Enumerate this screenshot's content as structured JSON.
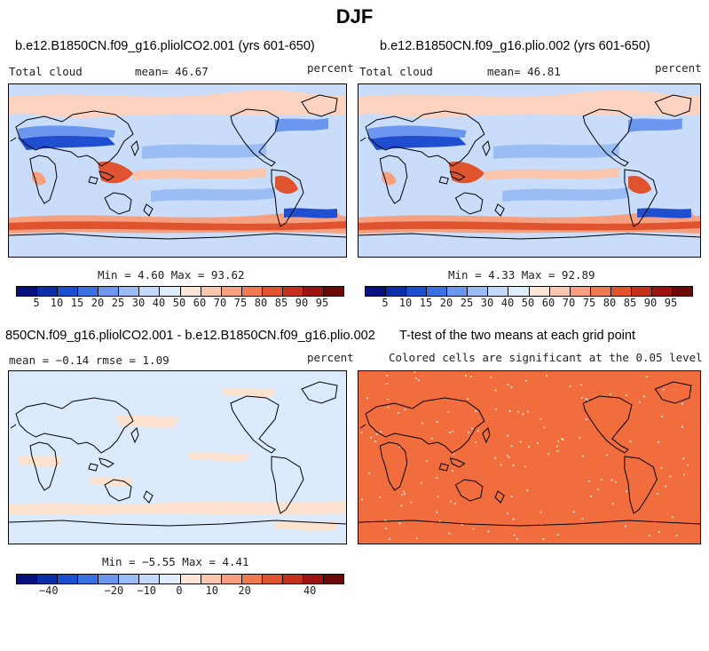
{
  "figure": {
    "title": "DJF"
  },
  "panels": [
    {
      "id": "top-left",
      "title": "b.e12.B1850CN.f09_g16.pliolCO2.001 (yrs 601-650)",
      "left_label": "Total cloud",
      "mean_label": "mean=  46.67",
      "units": "percent",
      "stats": "Min =   4.60 Max =  93.62",
      "variable": "Total cloud",
      "mean": 46.67,
      "min": 4.6,
      "max": 93.62
    },
    {
      "id": "top-right",
      "title": "b.e12.B1850CN.f09_g16.plio.002 (yrs 601-650)",
      "left_label": "Total cloud",
      "mean_label": "mean=  46.81",
      "units": "percent",
      "stats": "Min =   4.33 Max =  92.89",
      "variable": "Total cloud",
      "mean": 46.81,
      "min": 4.33,
      "max": 92.89
    },
    {
      "id": "bottom-left",
      "title": "850CN.f09_g16.pliolCO2.001 - b.e12.B1850CN.f09_g16.plio.002",
      "left_label": "mean =  −0.14    rmse =   1.09",
      "units": "percent",
      "stats": "Min =  −5.55 Max =   4.41",
      "mean": -0.14,
      "rmse": 1.09,
      "min": -5.55,
      "max": 4.41
    },
    {
      "id": "bottom-right",
      "title": "T-test of the two means at each grid point",
      "subtitle": "Colored cells are significant at the 0.05 level",
      "fill_color": "#f26d3d"
    }
  ],
  "colorbars": {
    "absolute": {
      "labels": [
        "5",
        "10",
        "15",
        "20",
        "25",
        "30",
        "40",
        "50",
        "60",
        "70",
        "75",
        "80",
        "85",
        "90",
        "95"
      ],
      "colors": [
        "#08107f",
        "#0a2fa8",
        "#1a4fd0",
        "#3a70e2",
        "#6b97ee",
        "#9bbdf6",
        "#c4dafc",
        "#e0edfd",
        "#fde5d8",
        "#fcc5ae",
        "#f7a07f",
        "#ef7a52",
        "#e0532f",
        "#c4301b",
        "#9b1410",
        "#6b0808"
      ]
    },
    "difference": {
      "labels": [
        "−40",
        "−20",
        "−10",
        "0",
        "10",
        "20",
        "40"
      ],
      "label_values": [
        -40,
        -20,
        -10,
        0,
        10,
        20,
        40
      ],
      "range": [
        -50,
        50
      ],
      "colors": [
        "#08107f",
        "#0a2fa8",
        "#1a4fd0",
        "#3a70e2",
        "#6b97ee",
        "#9bbdf6",
        "#c4dafc",
        "#e0edfd",
        "#fde5d8",
        "#fcc5ae",
        "#f7a07f",
        "#ef7a52",
        "#e0532f",
        "#c4301b",
        "#9b1410",
        "#6b0808"
      ]
    }
  },
  "map_colors": {
    "ocean_base": "#c9ddfb",
    "low_cloud_dark": "#1f4fd0",
    "low_cloud": "#6b97ee",
    "high_cloud": "#f7a07f",
    "high_cloud_dark": "#e0532f",
    "diff_base": "#dbeafc",
    "diff_pos": "#fde3cf"
  }
}
